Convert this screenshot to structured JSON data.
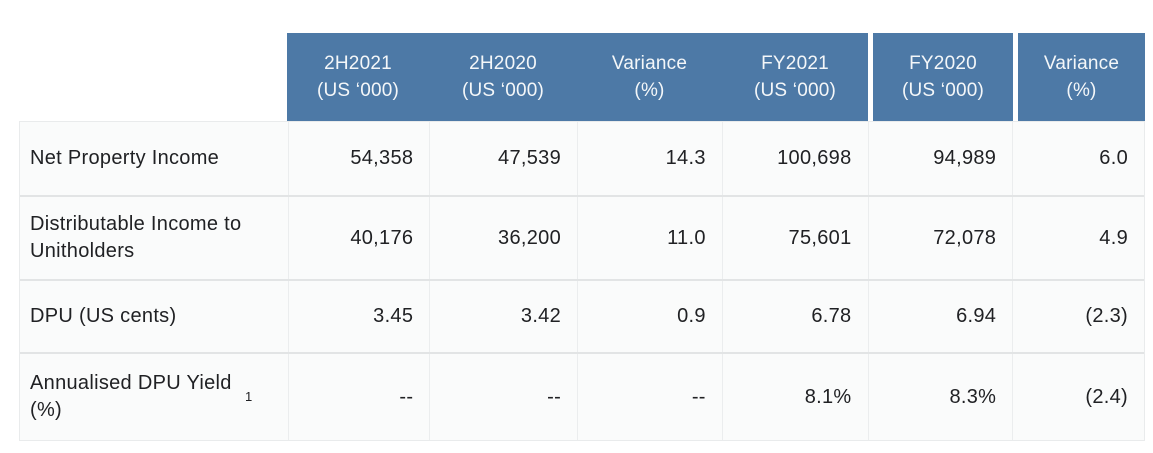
{
  "table": {
    "description": "Financial results summary table",
    "header": {
      "columns": [
        {
          "line1": "2H2021",
          "line2": "(US ‘000)"
        },
        {
          "line1": "2H2020",
          "line2": "(US ‘000)"
        },
        {
          "line1": "Variance",
          "line2": "(%)"
        },
        {
          "line1": "FY2021",
          "line2": "(US ‘000)"
        },
        {
          "line1": "FY2020",
          "line2": "(US ‘000)"
        },
        {
          "line1": "Variance",
          "line2": "(%)"
        }
      ]
    },
    "rows": [
      {
        "label": "Net Property Income",
        "sup": "",
        "values": [
          "54,358",
          "47,539",
          "14.3",
          "100,698",
          "94,989",
          "6.0"
        ]
      },
      {
        "label": "Distributable Income to Unitholders",
        "sup": "",
        "values": [
          "40,176",
          "36,200",
          "11.0",
          "75,601",
          "72,078",
          "4.9"
        ]
      },
      {
        "label": "DPU (US cents)",
        "sup": "",
        "values": [
          "3.45",
          "3.42",
          "0.9",
          "6.78",
          "6.94",
          "(2.3)"
        ]
      },
      {
        "label": "Annualised DPU Yield (%)",
        "sup": "1",
        "values": [
          "--",
          "--",
          "--",
          "8.1%",
          "8.3%",
          "(2.4)"
        ]
      }
    ],
    "colors": {
      "header_bg": "#4d79a6",
      "header_text": "#f4f7f9",
      "body_bg": "#fafbfb",
      "body_text": "#202124",
      "grid_line": "#e9ebec",
      "row_separator": "#e2e4e5"
    }
  }
}
